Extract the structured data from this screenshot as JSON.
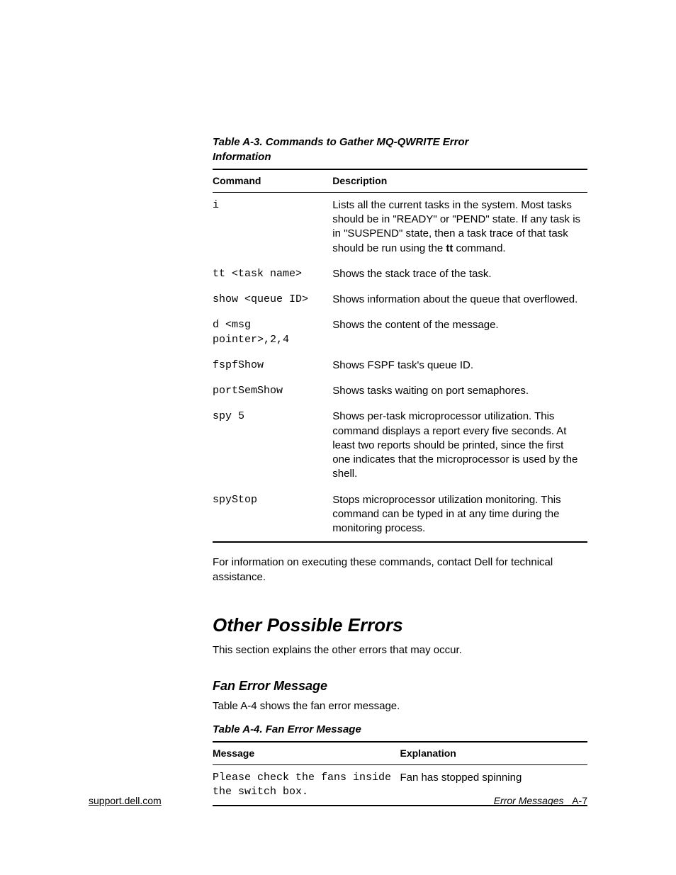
{
  "tableA3": {
    "title": "Table A-3.  Commands to Gather MQ-QWRITE Error Information",
    "headers": {
      "command": "Command",
      "description": "Description"
    },
    "rows": [
      {
        "cmd": "i",
        "desc_pre": "Lists all the current tasks in the system. Most tasks should be in \"READY\" or \"PEND\" state. If any task is in \"SUSPEND\" state, then a task trace of that task should be run using the ",
        "desc_bold": "tt",
        "desc_post": " command."
      },
      {
        "cmd": "tt <task name>",
        "desc": "Shows the stack trace of the task."
      },
      {
        "cmd": "show <queue ID>",
        "desc": "Shows information about the queue that overflowed."
      },
      {
        "cmd": "d <msg\npointer>,2,4",
        "desc": "Shows the content of the message."
      },
      {
        "cmd": "fspfShow",
        "desc": "Shows FSPF task's queue ID."
      },
      {
        "cmd": "portSemShow",
        "desc": "Shows tasks waiting on port semaphores."
      },
      {
        "cmd": "spy 5",
        "desc": "Shows per-task microprocessor utilization. This command displays a report every five seconds. At least two reports should be printed, since the first one indicates that the microprocessor is used by the shell."
      },
      {
        "cmd": "spyStop",
        "desc": "Stops microprocessor utilization monitoring. This command can be typed in at any time during the monitoring process."
      }
    ]
  },
  "afterTableA3": "For information on executing these commands, contact Dell for technical assistance.",
  "sectionHeading": "Other Possible Errors",
  "sectionIntro": "This section explains the other errors that may occur.",
  "subsectionHeading": "Fan Error Message",
  "subsectionIntro": "Table A-4 shows the fan error message.",
  "tableA4": {
    "title": "Table A-4.  Fan Error Message",
    "headers": {
      "message": "Message",
      "explanation": "Explanation"
    },
    "rows": [
      {
        "msg": "Please check the fans inside\nthe switch box.",
        "exp": "Fan has stopped spinning"
      }
    ]
  },
  "footer": {
    "left": "support.dell.com",
    "rightTitle": "Error Messages",
    "rightPage": "A-7"
  }
}
